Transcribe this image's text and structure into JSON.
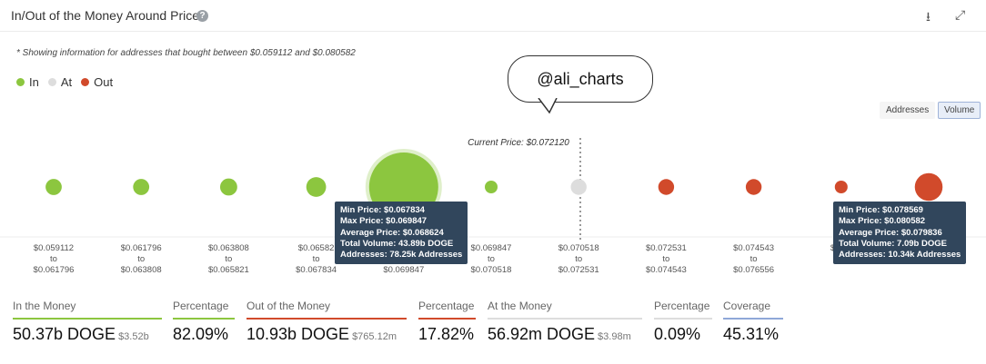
{
  "header": {
    "title": "In/Out of the Money Around Price",
    "help_icon": "question-circle-icon",
    "download_icon": "download-icon",
    "expand_icon": "expand-icon"
  },
  "note": "* Showing information for addresses that bought between $0.059112 and $0.080582",
  "legend": [
    {
      "label": "In",
      "color": "#8cc63f"
    },
    {
      "label": "At",
      "color": "#dddddd"
    },
    {
      "label": "Out",
      "color": "#d14a2b"
    }
  ],
  "watermark_bubble": "@ali_charts",
  "toggle": {
    "addresses": "Addresses",
    "volume": "Volume",
    "selected": "Volume"
  },
  "chart_data": {
    "type": "scatter",
    "current_price_label": "Current Price: $0.072120",
    "current_price": 0.07212,
    "buckets": [
      {
        "low": "$0.059112",
        "to": "to",
        "high": "$0.061796",
        "status": "in",
        "size": 2.4
      },
      {
        "low": "$0.061796",
        "to": "to",
        "high": "$0.063808",
        "status": "in",
        "size": 2.4
      },
      {
        "low": "$0.063808",
        "to": "to",
        "high": "$0.065821",
        "status": "in",
        "size": 2.7
      },
      {
        "low": "$0.06582",
        "to": "to",
        "high": "$0.067834",
        "status": "in",
        "size": 3.6
      },
      {
        "low": "$0.067834",
        "to": "to",
        "high": "$0.069847",
        "status": "in",
        "size": 43.89
      },
      {
        "low": "$0.069847",
        "to": "to",
        "high": "$0.070518",
        "status": "in",
        "size": 1.0
      },
      {
        "low": "$0.070518",
        "to": "to",
        "high": "$0.072531",
        "status": "at",
        "size": 2.3
      },
      {
        "low": "$0.072531",
        "to": "to",
        "high": "$0.074543",
        "status": "out",
        "size": 2.3
      },
      {
        "low": "$0.074543",
        "to": "to",
        "high": "$0.076556",
        "status": "out",
        "size": 2.3
      },
      {
        "low": "$0.07",
        "to": "to",
        "high": "",
        "status": "out",
        "size": 1.5
      },
      {
        "low": "",
        "to": "",
        "high": "",
        "status": "out",
        "size": 7.09
      }
    ],
    "tooltips": [
      {
        "lines": [
          "Min Price: $0.067834",
          "Max Price: $0.069847",
          "Average Price: $0.068624",
          "Total Volume: 43.89b DOGE",
          "Addresses: 78.25k Addresses"
        ]
      },
      {
        "lines": [
          "Min Price: $0.078569",
          "Max Price: $0.080582",
          "Average Price: $0.079836",
          "Total Volume: 7.09b DOGE",
          "Addresses: 10.34k Addresses"
        ]
      }
    ]
  },
  "stats": [
    {
      "label": "In the Money",
      "value": "50.37b DOGE",
      "sub": "$3.52b",
      "color": "#8cc63f"
    },
    {
      "label": "Percentage",
      "value": "82.09%",
      "sub": "",
      "color": "#8cc63f"
    },
    {
      "label": "Out of the Money",
      "value": "10.93b DOGE",
      "sub": "$765.12m",
      "color": "#d14a2b"
    },
    {
      "label": "Percentage",
      "value": "17.82%",
      "sub": "",
      "color": "#d14a2b"
    },
    {
      "label": "At the Money",
      "value": "56.92m DOGE",
      "sub": "$3.98m",
      "color": "#dddddd"
    },
    {
      "label": "Percentage",
      "value": "0.09%",
      "sub": "",
      "color": "#dddddd"
    },
    {
      "label": "Coverage",
      "value": "45.31%",
      "sub": "",
      "color": "#8fa8d8"
    }
  ]
}
